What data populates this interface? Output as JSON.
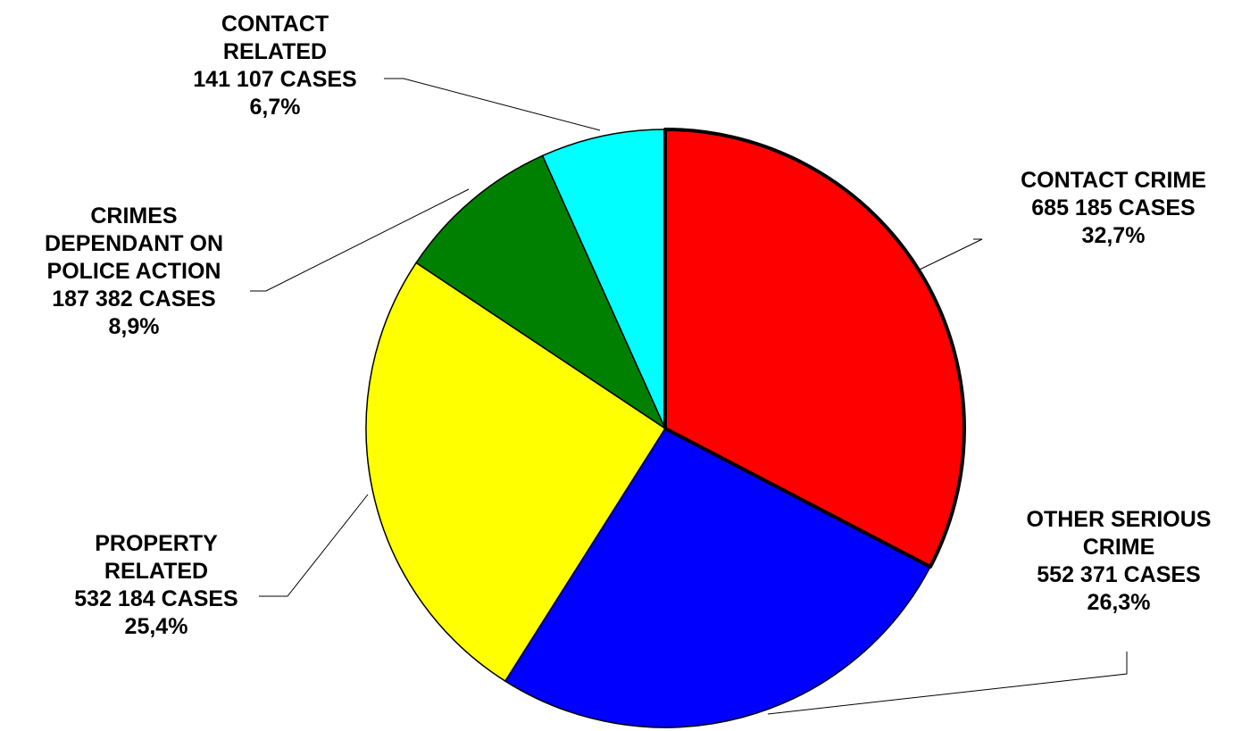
{
  "chart_data": {
    "type": "pie",
    "start_angle_deg": 0,
    "direction": "clockwise",
    "slices": [
      {
        "name": "CONTACT CRIME",
        "cases": 685185,
        "percent": 32.7,
        "color": "#ff0000",
        "highlighted": true,
        "label_lines": [
          "CONTACT CRIME",
          "685 185 CASES",
          "32,7%"
        ]
      },
      {
        "name": "OTHER SERIOUS CRIME",
        "cases": 552371,
        "percent": 26.3,
        "color": "#0000ff",
        "highlighted": false,
        "label_lines": [
          "OTHER SERIOUS",
          "CRIME",
          "552 371 CASES",
          "26,3%"
        ]
      },
      {
        "name": "PROPERTY RELATED",
        "cases": 532184,
        "percent": 25.4,
        "color": "#ffff00",
        "highlighted": false,
        "label_lines": [
          "PROPERTY",
          "RELATED",
          "532 184 CASES",
          "25,4%"
        ]
      },
      {
        "name": "CRIMES DEPENDANT ON POLICE ACTION",
        "cases": 187382,
        "percent": 8.9,
        "color": "#008000",
        "highlighted": false,
        "label_lines": [
          "CRIMES",
          "DEPENDANT ON",
          "POLICE ACTION",
          "187 382 CASES",
          "8,9%"
        ]
      },
      {
        "name": "CONTACT RELATED",
        "cases": 141107,
        "percent": 6.7,
        "color": "#00ffff",
        "highlighted": false,
        "label_lines": [
          "CONTACT",
          "RELATED",
          "141 107 CASES",
          "6,7%"
        ]
      }
    ],
    "legend": "none"
  }
}
